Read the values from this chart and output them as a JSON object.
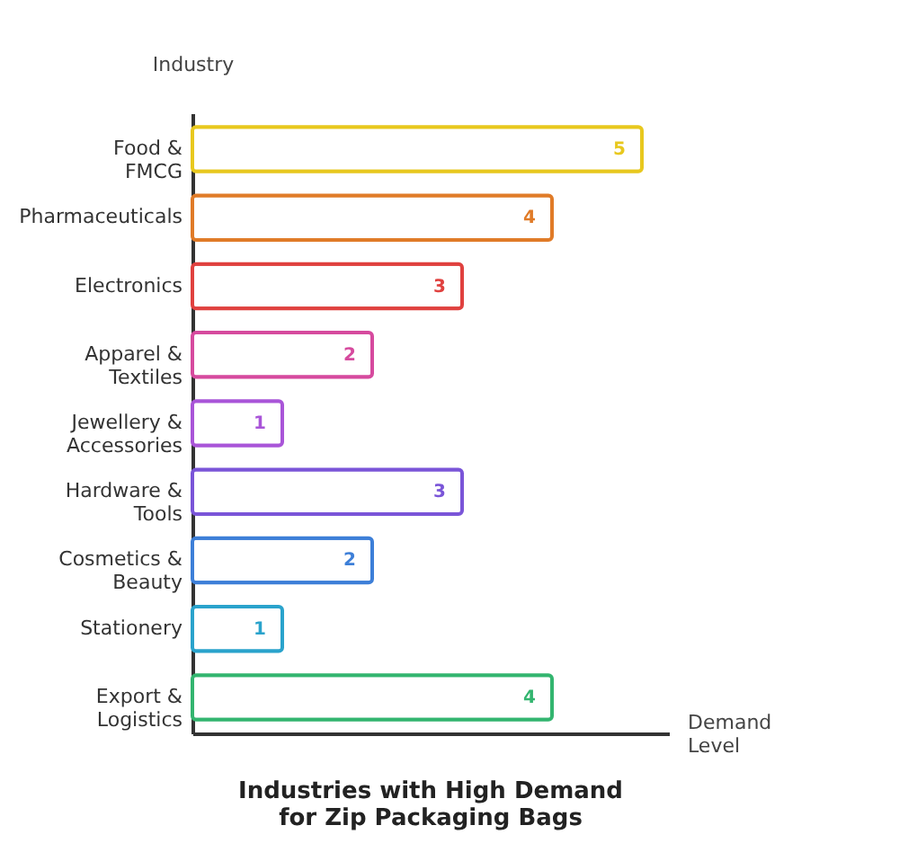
{
  "chart_data": {
    "type": "bar",
    "orientation": "horizontal",
    "title": [
      "Industries with High Demand",
      "for Zip Packaging Bags"
    ],
    "xlabel": "Demand\nLevel",
    "ylabel": "Industry",
    "categories": [
      "Food &\nFMCG",
      "Pharmaceuticals",
      "Electronics",
      "Apparel &\nTextiles",
      "Jewellery &\nAccessories",
      "Hardware &\nTools",
      "Cosmetics &\nBeauty",
      "Stationery",
      "Export &\nLogistics"
    ],
    "values": [
      5,
      4,
      3,
      2,
      1,
      3,
      2,
      1,
      4
    ],
    "colors": [
      "#e8c81e",
      "#e07b28",
      "#e0413f",
      "#d64a9e",
      "#a955d8",
      "#7a55d8",
      "#3d7fd8",
      "#2aa3cc",
      "#33b56f"
    ],
    "xlim": [
      0,
      5.3
    ],
    "data_labels": true,
    "tick_labels": "y",
    "legend": false
  }
}
